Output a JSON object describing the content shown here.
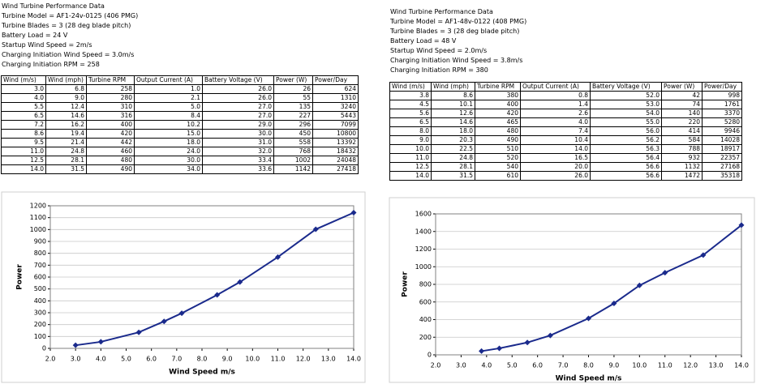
{
  "panels": [
    {
      "info": [
        "Wind Turbine Performance Data",
        "Turbine Model = AF1-24v-0125 (406 PMG)",
        "Turbine Blades = 3 (28 deg blade pitch)",
        "Battery Load = 24 V",
        "Startup Wind Speed = 2m/s",
        "Charging Initiation Wind Speed = 3.0m/s",
        "Charging Initiation RPM = 258"
      ],
      "table": {
        "columns": [
          "Wind (m/s)",
          "Wind (mph)",
          "Turbine RPM",
          "Output Current (A)",
          "Battery Voltage (V)",
          "Power (W)",
          "Power/Day"
        ],
        "rows": [
          [
            "3.0",
            "6.8",
            "258",
            "1.0",
            "26.0",
            "26",
            "624"
          ],
          [
            "4.0",
            "9.0",
            "280",
            "2.1",
            "26.0",
            "55",
            "1310"
          ],
          [
            "5.5",
            "12.4",
            "310",
            "5.0",
            "27.0",
            "135",
            "3240"
          ],
          [
            "6.5",
            "14.6",
            "316",
            "8.4",
            "27.0",
            "227",
            "5443"
          ],
          [
            "7.2",
            "16.2",
            "400",
            "10.2",
            "29.0",
            "296",
            "7099"
          ],
          [
            "8.6",
            "19.4",
            "420",
            "15.0",
            "30.0",
            "450",
            "10800"
          ],
          [
            "9.5",
            "21.4",
            "442",
            "18.0",
            "31.0",
            "558",
            "13392"
          ],
          [
            "11.0",
            "24.8",
            "460",
            "24.0",
            "32.0",
            "768",
            "18432"
          ],
          [
            "12.5",
            "28.1",
            "480",
            "30.0",
            "33.4",
            "1002",
            "24048"
          ],
          [
            "14.0",
            "31.5",
            "490",
            "34.0",
            "33.6",
            "1142",
            "27418"
          ]
        ]
      }
    },
    {
      "info": [
        "Wind Turbine Performance Data",
        "Turbine Model = AF1-48v-0122 (408 PMG)",
        "Turbine Blades = 3 (28 deg blade pitch)",
        "Battery Load = 48 V",
        "Startup Wind Speed = 2.0m/s",
        "Charging Initiation Wind Speed = 3.8m/s",
        "Charging Initiation RPM = 380"
      ],
      "table": {
        "columns": [
          "Wind (m/s)",
          "Wind (mph)",
          "Turbine RPM",
          "Output Current (A)",
          "Battery Voltage (V)",
          "Power (W)",
          "Power/Day"
        ],
        "rows": [
          [
            "3.8",
            "8.6",
            "380",
            "0.8",
            "52.0",
            "42",
            "998"
          ],
          [
            "4.5",
            "10.1",
            "400",
            "1.4",
            "53.0",
            "74",
            "1761"
          ],
          [
            "5.6",
            "12.6",
            "420",
            "2.6",
            "54.0",
            "140",
            "3370"
          ],
          [
            "6.5",
            "14.6",
            "465",
            "4.0",
            "55.0",
            "220",
            "5280"
          ],
          [
            "8.0",
            "18.0",
            "480",
            "7.4",
            "56.0",
            "414",
            "9946"
          ],
          [
            "9.0",
            "20.3",
            "490",
            "10.4",
            "56.2",
            "584",
            "14028"
          ],
          [
            "10.0",
            "22.5",
            "510",
            "14.0",
            "56.3",
            "788",
            "18917"
          ],
          [
            "11.0",
            "24.8",
            "520",
            "16.5",
            "56.4",
            "932",
            "22357"
          ],
          [
            "12.5",
            "28.1",
            "540",
            "20.0",
            "56.6",
            "1132",
            "27168"
          ],
          [
            "14.0",
            "31.5",
            "610",
            "26.0",
            "56.6",
            "1472",
            "35318"
          ]
        ]
      }
    }
  ],
  "chart_data": [
    {
      "type": "line",
      "x_label": "Wind Speed m/s",
      "y_label": "Power",
      "color": "#1a2a8c",
      "grid": true,
      "x": [
        3,
        4,
        5.5,
        6.5,
        7.2,
        8.6,
        9.5,
        11,
        12.5,
        14
      ],
      "values": [
        26,
        55,
        135,
        227,
        296,
        450,
        558,
        768,
        1002,
        1142
      ],
      "xlim": [
        2,
        14
      ],
      "xticks": [
        {
          "value": 2,
          "label": "2.0"
        },
        {
          "value": 3,
          "label": "3.0"
        },
        {
          "value": 4,
          "label": "4.0"
        },
        {
          "value": 5,
          "label": "5.0"
        },
        {
          "value": 6,
          "label": "6.0"
        },
        {
          "value": 7,
          "label": "7.0"
        },
        {
          "value": 8,
          "label": "8.0"
        },
        {
          "value": 9,
          "label": "9.0"
        },
        {
          "value": 10,
          "label": "10.0"
        },
        {
          "value": 11,
          "label": "11.0"
        },
        {
          "value": 12,
          "label": "12.0"
        },
        {
          "value": 13,
          "label": "13.0"
        },
        {
          "value": 14,
          "label": "14.0"
        }
      ],
      "ylim": [
        0,
        1200
      ],
      "yticks": [
        0,
        100,
        200,
        300,
        400,
        500,
        600,
        700,
        800,
        900,
        1000,
        1100,
        1200
      ]
    },
    {
      "type": "line",
      "x_label": "Wind Speed m/s",
      "y_label": "Power",
      "color": "#1a2a8c",
      "grid": true,
      "x": [
        3.8,
        4.5,
        5.6,
        6.5,
        8,
        9,
        10,
        11,
        12.5,
        14
      ],
      "values": [
        42,
        74,
        140,
        220,
        414,
        584,
        788,
        932,
        1132,
        1472
      ],
      "xlim": [
        2,
        14
      ],
      "xticks": [
        {
          "value": 2,
          "label": "2.0"
        },
        {
          "value": 3,
          "label": "3.0"
        },
        {
          "value": 4,
          "label": "4.0"
        },
        {
          "value": 5,
          "label": "5.0"
        },
        {
          "value": 6,
          "label": "6.0"
        },
        {
          "value": 7,
          "label": "7.0"
        },
        {
          "value": 8,
          "label": "8.0"
        },
        {
          "value": 9,
          "label": "9.0"
        },
        {
          "value": 10,
          "label": "10.0"
        },
        {
          "value": 11,
          "label": "11.0"
        },
        {
          "value": 12,
          "label": "12.0"
        },
        {
          "value": 13,
          "label": "13.0"
        },
        {
          "value": 14,
          "label": "14.0"
        }
      ],
      "ylim": [
        0,
        1600
      ],
      "yticks": [
        0,
        200,
        400,
        600,
        800,
        1000,
        1200,
        1400,
        1600
      ]
    }
  ]
}
